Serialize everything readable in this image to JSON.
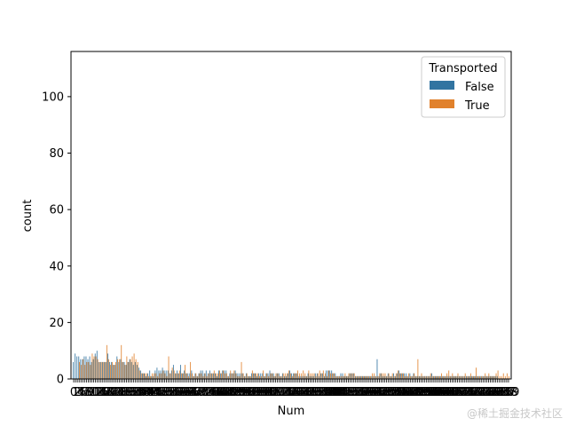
{
  "chart_data": {
    "type": "bar",
    "xlabel": "Num",
    "ylabel": "count",
    "ylim": [
      0,
      116
    ],
    "yticks": [
      0,
      20,
      40,
      60,
      80,
      100
    ],
    "legend": {
      "title": "Transported",
      "placement": "top-right"
    },
    "series": [
      {
        "name": "False",
        "color": "#3274a1"
      },
      {
        "name": "True",
        "color": "#e1812c"
      }
    ],
    "num_categories": 240,
    "false_values": [
      6,
      9,
      8,
      8,
      7,
      7,
      8,
      8,
      7,
      8,
      6,
      7,
      9,
      10,
      6,
      6,
      6,
      6,
      6,
      9,
      6,
      6,
      5,
      5,
      8,
      6,
      7,
      6,
      6,
      5,
      6,
      7,
      6,
      5,
      6,
      5,
      4,
      3,
      2,
      2,
      1,
      2,
      3,
      1,
      1,
      3,
      4,
      3,
      3,
      4,
      3,
      3,
      3,
      2,
      3,
      5,
      2,
      3,
      2,
      5,
      2,
      3,
      2,
      2,
      2,
      3,
      1,
      2,
      1,
      2,
      3,
      3,
      2,
      3,
      2,
      3,
      2,
      2,
      2,
      1,
      3,
      2,
      3,
      3,
      3,
      1,
      2,
      2,
      2,
      3,
      2,
      2,
      2,
      2,
      1,
      2,
      1,
      1,
      2,
      2,
      2,
      1,
      2,
      2,
      2,
      1,
      2,
      2,
      3,
      2,
      2,
      1,
      2,
      2,
      1,
      2,
      1,
      1,
      2,
      3,
      2,
      2,
      2,
      2,
      1,
      1,
      1,
      1,
      1,
      2,
      1,
      1,
      1,
      2,
      2,
      1,
      2,
      2,
      1,
      3,
      3,
      3,
      3,
      2,
      2,
      1,
      1,
      2,
      2,
      1,
      1,
      1,
      2,
      2,
      2,
      1,
      1,
      1,
      1,
      1,
      1,
      1,
      1,
      1,
      1,
      1,
      1,
      7,
      1,
      2,
      1,
      1,
      1,
      2,
      1,
      1,
      2,
      1,
      2,
      3,
      2,
      2,
      2,
      2,
      1,
      2,
      1,
      2,
      1,
      1,
      1,
      1,
      1,
      1,
      1,
      1,
      1,
      2,
      1,
      1,
      1,
      1,
      1,
      1,
      1,
      1,
      1,
      1,
      1,
      1,
      1,
      1,
      1,
      1,
      1,
      1,
      1,
      1,
      1,
      1,
      1,
      1,
      1,
      1,
      1,
      1,
      1,
      1,
      1,
      1,
      1,
      1,
      1,
      1
    ],
    "true_values": [
      0,
      0,
      0,
      6,
      5,
      7,
      5,
      6,
      6,
      5,
      9,
      8,
      8,
      7,
      6,
      6,
      6,
      6,
      12,
      7,
      5,
      6,
      5,
      6,
      7,
      7,
      12,
      6,
      5,
      8,
      6,
      7,
      8,
      9,
      7,
      6,
      3,
      2,
      2,
      2,
      2,
      1,
      1,
      2,
      2,
      2,
      1,
      2,
      2,
      3,
      2,
      1,
      8,
      2,
      4,
      3,
      2,
      2,
      3,
      2,
      2,
      5,
      2,
      1,
      6,
      2,
      1,
      2,
      1,
      2,
      2,
      1,
      2,
      1,
      2,
      2,
      2,
      3,
      2,
      2,
      3,
      2,
      3,
      2,
      2,
      1,
      3,
      2,
      3,
      2,
      1,
      1,
      6,
      2,
      1,
      2,
      1,
      1,
      3,
      2,
      2,
      2,
      1,
      1,
      3,
      1,
      2,
      1,
      2,
      2,
      1,
      2,
      2,
      1,
      1,
      2,
      2,
      2,
      3,
      2,
      1,
      2,
      2,
      3,
      2,
      2,
      3,
      2,
      1,
      3,
      2,
      2,
      2,
      1,
      2,
      3,
      2,
      3,
      2,
      1,
      3,
      2,
      2,
      2,
      1,
      1,
      1,
      1,
      1,
      2,
      1,
      2,
      2,
      2,
      2,
      1,
      1,
      1,
      1,
      1,
      1,
      1,
      1,
      1,
      2,
      2,
      1,
      1,
      2,
      2,
      2,
      2,
      1,
      2,
      1,
      2,
      1,
      2,
      3,
      2,
      2,
      2,
      1,
      1,
      2,
      1,
      1,
      2,
      1,
      7,
      1,
      2,
      1,
      1,
      1,
      1,
      2,
      1,
      1,
      1,
      1,
      1,
      2,
      1,
      1,
      2,
      3,
      1,
      2,
      1,
      1,
      2,
      1,
      1,
      1,
      2,
      1,
      1,
      2,
      1,
      1,
      4,
      1,
      1,
      1,
      1,
      2,
      1,
      2,
      1,
      1,
      1,
      2,
      3,
      1,
      1,
      2,
      1,
      2,
      1
    ]
  },
  "watermark": "@稀土掘金技术社区"
}
